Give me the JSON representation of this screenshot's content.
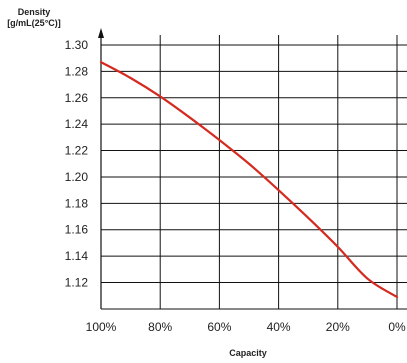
{
  "chart_data": {
    "type": "line",
    "ylabel_line1": "Density",
    "ylabel_line2": "[g/mL(25°C)]",
    "xlabel": "Capacity",
    "x": [
      100,
      90,
      80,
      70,
      60,
      50,
      40,
      30,
      20,
      10,
      0
    ],
    "x_reversed": true,
    "xlim": [
      100,
      0
    ],
    "ylim": [
      1.1,
      1.3
    ],
    "x_ticks": [
      100,
      80,
      60,
      40,
      20,
      0
    ],
    "x_tick_labels": [
      "100%",
      "80%",
      "60%",
      "40%",
      "20%",
      "0%"
    ],
    "y_ticks": [
      1.12,
      1.14,
      1.16,
      1.18,
      1.2,
      1.22,
      1.24,
      1.26,
      1.28,
      1.3
    ],
    "y_tick_labels": [
      "1.12",
      "1.14",
      "1.16",
      "1.18",
      "1.20",
      "1.22",
      "1.24",
      "1.26",
      "1.28",
      "1.30"
    ],
    "grid": true,
    "series": [
      {
        "color": "#d42a1f",
        "values": [
          1.287,
          1.275,
          1.261,
          1.245,
          1.228,
          1.21,
          1.19,
          1.169,
          1.147,
          1.123,
          1.109
        ]
      }
    ]
  }
}
